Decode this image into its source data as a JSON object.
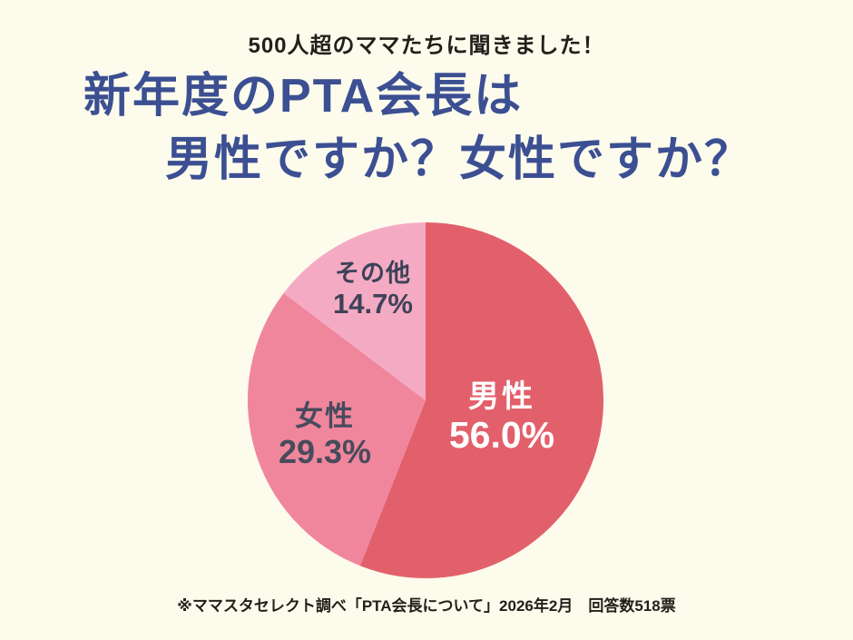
{
  "page": {
    "background": "#fdfbec",
    "header": "500人超のママたちに聞きました！",
    "title_line1": "新年度のPTA会長は",
    "title_line2": "男性ですか？女性ですか？",
    "title_color": "#3b4f92",
    "text_color": "#21211b",
    "footnote": "※ママスタセレクト調べ「PTA会長について」2026年2月　回答数518票"
  },
  "chart_data": {
    "type": "pie",
    "title": "新年度のPTA会長は男性ですか？女性ですか？",
    "unit": "%",
    "start_angle": "12-oclock",
    "direction": "clockwise",
    "legend_position": "none",
    "labels_inside_slices": true,
    "slices": [
      {
        "id": "male",
        "label": "男性",
        "value": 56.0,
        "display": "56.0%",
        "color": "#e2606b",
        "label_color": "#ffffff"
      },
      {
        "id": "female",
        "label": "女性",
        "value": 29.3,
        "display": "29.3%",
        "color": "#f0869c",
        "label_color": "#474b5c"
      },
      {
        "id": "other",
        "label": "その他",
        "value": 14.7,
        "display": "14.7%",
        "color": "#f5aac4",
        "label_color": "#3d4257"
      }
    ]
  }
}
